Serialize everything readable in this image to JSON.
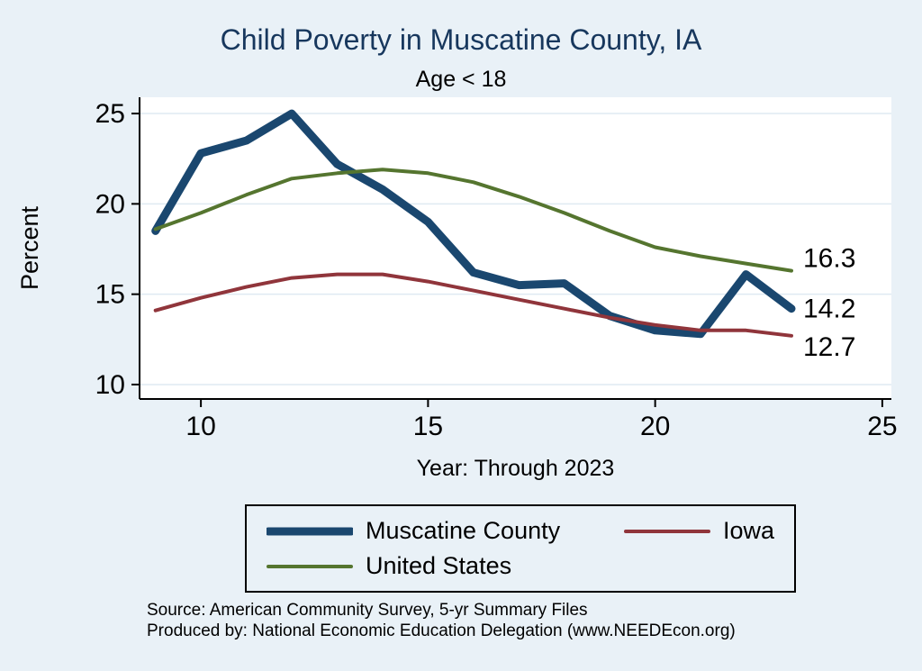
{
  "title": "Child Poverty in Muscatine County, IA",
  "subtitle": "Age < 18",
  "axes": {
    "xlabel": "Year: Through 2023",
    "ylabel": "Percent"
  },
  "colors": {
    "background": "#e9f1f7",
    "plot_bg": "#ffffff",
    "grid": "#dfeaf2",
    "axis": "#000000",
    "title_text": "#17375d",
    "muscatine": "#1a476f",
    "iowa": "#90353b",
    "united_states": "#55752f"
  },
  "chart_data": {
    "type": "line",
    "title": "Child Poverty in Muscatine County, IA",
    "subtitle": "Age < 18",
    "xlabel": "Year: Through 2023",
    "ylabel": "Percent",
    "x": [
      9,
      10,
      11,
      12,
      13,
      14,
      15,
      16,
      17,
      18,
      19,
      20,
      21,
      22,
      23
    ],
    "series": [
      {
        "name": "Muscatine County",
        "color": "#1a476f",
        "width": 9,
        "values": [
          18.5,
          22.8,
          23.5,
          25.0,
          22.2,
          20.8,
          19.0,
          16.2,
          15.5,
          15.6,
          13.8,
          13.0,
          12.8,
          16.1,
          14.2
        ]
      },
      {
        "name": "Iowa",
        "color": "#90353b",
        "width": 4,
        "values": [
          14.1,
          14.8,
          15.4,
          15.9,
          16.1,
          16.1,
          15.7,
          15.2,
          14.7,
          14.2,
          13.7,
          13.3,
          13.0,
          13.0,
          12.7
        ]
      },
      {
        "name": "United States",
        "color": "#55752f",
        "width": 4,
        "values": [
          18.6,
          19.5,
          20.5,
          21.4,
          21.7,
          21.9,
          21.7,
          21.2,
          20.4,
          19.5,
          18.5,
          17.6,
          17.1,
          16.7,
          16.3
        ]
      }
    ],
    "end_labels": [
      {
        "text": "16.3",
        "value": 16.3,
        "dy": -14
      },
      {
        "text": "14.2",
        "value": 14.2,
        "dy": 0
      },
      {
        "text": "12.7",
        "value": 12.7,
        "dy": 12
      }
    ],
    "xlim": [
      8.65,
      25.2
    ],
    "ylim": [
      9.2,
      25.9
    ],
    "xticks": [
      10,
      15,
      20,
      25
    ],
    "yticks": [
      10,
      15,
      20,
      25
    ],
    "grid": "horizontal-y",
    "legend_position": "bottom"
  },
  "legend": {
    "items": [
      {
        "label": "Muscatine County",
        "color": "#1a476f",
        "width": 9
      },
      {
        "label": "Iowa",
        "color": "#90353b",
        "width": 4
      },
      {
        "label": "United States",
        "color": "#55752f",
        "width": 4
      }
    ]
  },
  "footer": {
    "source": "Source: American Community Survey, 5-yr Summary Files",
    "produced_by": "Produced by: National Economic Education Delegation (www.NEEDEcon.org)"
  }
}
